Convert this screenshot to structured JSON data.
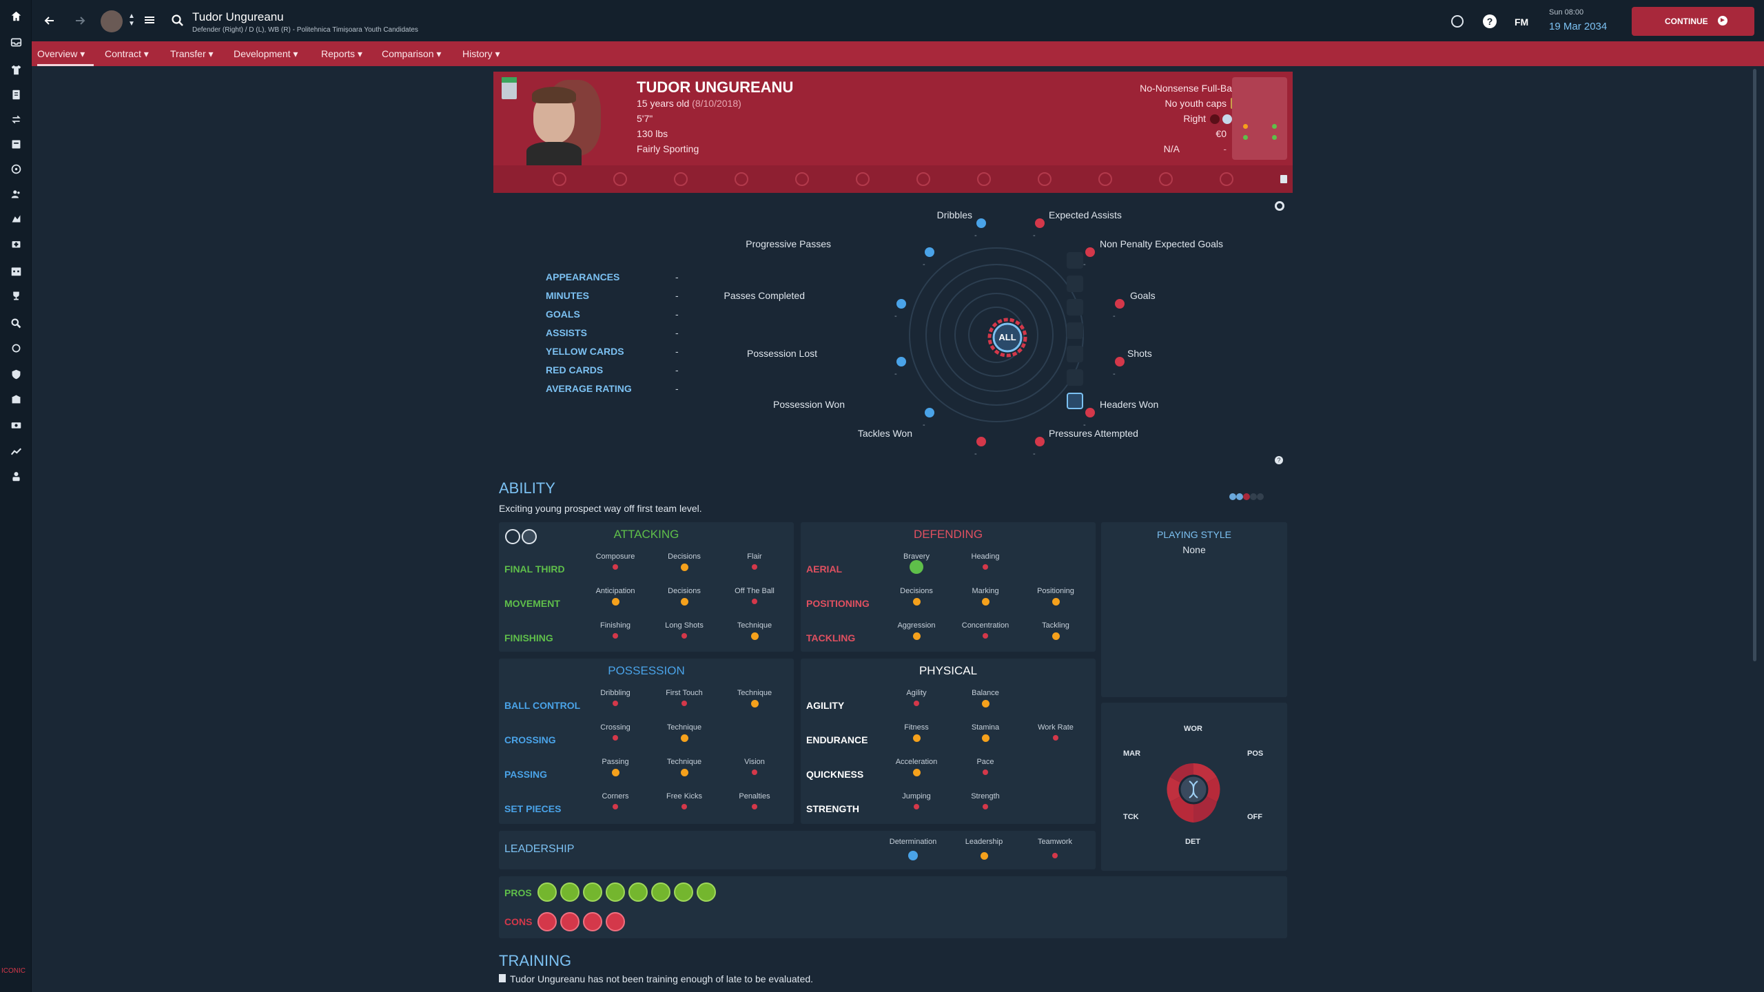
{
  "header": {
    "player_name": "Tudor Ungureanu",
    "player_sub": "Defender (Right) / D (L), WB (R) - Politehnica Timișoara Youth Candidates",
    "fm": "FM",
    "day_time": "Sun 08:00",
    "date": "19 Mar 2034",
    "continue": "CONTINUE"
  },
  "nav": {
    "tabs": [
      "Overview",
      "Contract",
      "Transfer",
      "Development",
      "Reports",
      "Comparison",
      "History"
    ]
  },
  "profile": {
    "name": "TUDOR UNGUREANU",
    "age": "15 years old",
    "dob": "(8/10/2018)",
    "height": "5'7\"",
    "weight": "130 lbs",
    "personality": "Fairly Sporting",
    "role": "No-Nonsense Full-Back",
    "caps": "No youth caps",
    "foot": "Right",
    "value": "€0",
    "na": "N/A",
    "dash": "-"
  },
  "stats": [
    {
      "label": "APPEARANCES",
      "value": "-"
    },
    {
      "label": "MINUTES",
      "value": "-"
    },
    {
      "label": "GOALS",
      "value": "-"
    },
    {
      "label": "ASSISTS",
      "value": "-"
    },
    {
      "label": "YELLOW CARDS",
      "value": "-"
    },
    {
      "label": "RED CARDS",
      "value": "-"
    },
    {
      "label": "AVERAGE RATING",
      "value": "-"
    }
  ],
  "radar": {
    "center": "ALL",
    "labels": {
      "dribbles": "Dribbles",
      "expected_assists": "Expected Assists",
      "progressive_passes": "Progressive Passes",
      "npxg": "Non Penalty Expected Goals",
      "passes_completed": "Passes Completed",
      "goals": "Goals",
      "possession_lost": "Possession Lost",
      "shots": "Shots",
      "possession_won": "Possession Won",
      "headers_won": "Headers Won",
      "tackles_won": "Tackles Won",
      "pressures": "Pressures Attempted"
    },
    "dash": "-"
  },
  "ability": {
    "title": "ABILITY",
    "desc": "Exciting young prospect way off first team level."
  },
  "attacking": {
    "title": "ATTACKING",
    "rows": [
      {
        "name": "FINAL THIRD",
        "attrs": [
          "Composure",
          "Decisions",
          "Flair"
        ]
      },
      {
        "name": "MOVEMENT",
        "attrs": [
          "Anticipation",
          "Decisions",
          "Off The Ball"
        ]
      },
      {
        "name": "FINISHING",
        "attrs": [
          "Finishing",
          "Long Shots",
          "Technique"
        ]
      }
    ]
  },
  "defending": {
    "title": "DEFENDING",
    "rows": [
      {
        "name": "AERIAL",
        "attrs": [
          "Bravery",
          "Heading"
        ]
      },
      {
        "name": "POSITIONING",
        "attrs": [
          "Decisions",
          "Marking",
          "Positioning"
        ]
      },
      {
        "name": "TACKLING",
        "attrs": [
          "Aggression",
          "Concentration",
          "Tackling"
        ]
      }
    ]
  },
  "possession": {
    "title": "POSSESSION",
    "rows": [
      {
        "name": "BALL CONTROL",
        "attrs": [
          "Dribbling",
          "First Touch",
          "Technique"
        ]
      },
      {
        "name": "CROSSING",
        "attrs": [
          "Crossing",
          "Technique"
        ]
      },
      {
        "name": "PASSING",
        "attrs": [
          "Passing",
          "Technique",
          "Vision"
        ]
      },
      {
        "name": "SET PIECES",
        "attrs": [
          "Corners",
          "Free Kicks",
          "Penalties"
        ]
      }
    ]
  },
  "physical": {
    "title": "PHYSICAL",
    "rows": [
      {
        "name": "AGILITY",
        "attrs": [
          "Agility",
          "Balance"
        ]
      },
      {
        "name": "ENDURANCE",
        "attrs": [
          "Fitness",
          "Stamina",
          "Work Rate"
        ]
      },
      {
        "name": "QUICKNESS",
        "attrs": [
          "Acceleration",
          "Pace"
        ]
      },
      {
        "name": "STRENGTH",
        "attrs": [
          "Jumping",
          "Strength"
        ]
      }
    ]
  },
  "leadership": {
    "title": "LEADERSHIP",
    "attrs": [
      "Determination",
      "Leadership",
      "Teamwork"
    ]
  },
  "playing_style": {
    "title": "PLAYING STYLE",
    "value": "None"
  },
  "dna": {
    "wor": "WOR",
    "mar": "MAR",
    "pos": "POS",
    "tck": "TCK",
    "off": "OFF",
    "det": "DET"
  },
  "pros_cons": {
    "pros": "PROS",
    "cons": "CONS"
  },
  "training": {
    "title": "TRAINING",
    "text": "Tudor Ungureanu has not been training enough of late to be evaluated."
  },
  "colors": {
    "red": "#d4384a",
    "orange": "#f5a11c",
    "green": "#5fbf4a",
    "blue": "#4aa3e8",
    "accent": "#a8283b"
  }
}
